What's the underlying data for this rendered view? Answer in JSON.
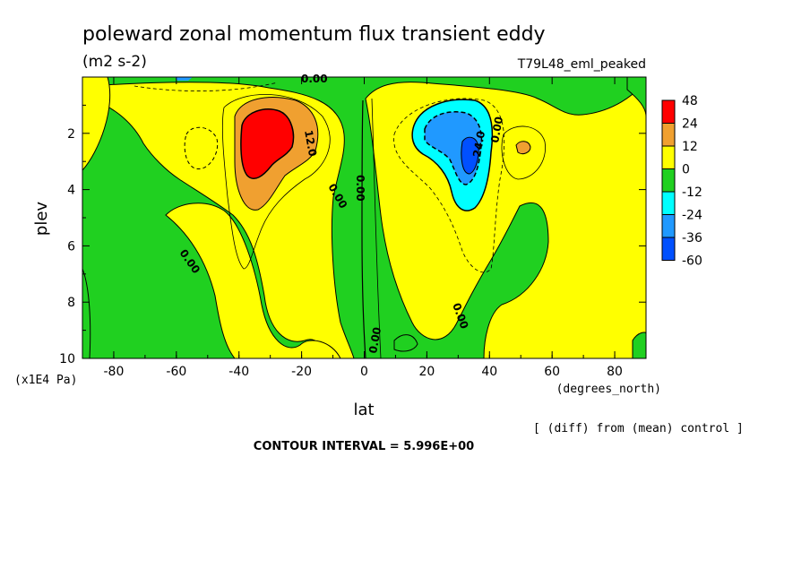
{
  "chart_data": {
    "type": "heatmap",
    "title": "poleward zonal momentum flux transient eddy",
    "units": "(m2 s-2)",
    "experiment": "T79L48_eml_peaked",
    "xlabel": "lat",
    "xunits": "(degrees_north)",
    "ylabel": "plev",
    "yunits": "(x1E4 Pa)",
    "xlim": [
      -90,
      90
    ],
    "ylim": [
      10,
      0
    ],
    "xticks": [
      "-80",
      "-60",
      "-40",
      "-20",
      "0",
      "20",
      "40",
      "60",
      "80"
    ],
    "yticks": [
      "2",
      "4",
      "6",
      "8",
      "10"
    ],
    "legend": {
      "labels": [
        "48",
        "24",
        "12",
        "0",
        "-12",
        "-24",
        "-36",
        "-60"
      ],
      "colors": [
        "#ff0000",
        "#f0a030",
        "#ffff00",
        "#20d020",
        "#00ffff",
        "#2099ff",
        "#0050ff"
      ]
    },
    "contour_labels": [
      "0.00",
      "12.0",
      "0.00",
      "0.00",
      "0.00",
      "0.00",
      "0.00",
      "0.00",
      "24.0",
      "0.00",
      "0.00"
    ],
    "features": [
      {
        "lat": -32,
        "plev": 2.5,
        "value": 48
      },
      {
        "lat": 32,
        "plev": 2.5,
        "value": -48
      },
      {
        "lat": 50,
        "plev": 2.6,
        "value": 12
      }
    ],
    "note": "[ (diff) from (mean) control ]",
    "contour_interval": "CONTOUR INTERVAL = 5.996E+00"
  }
}
